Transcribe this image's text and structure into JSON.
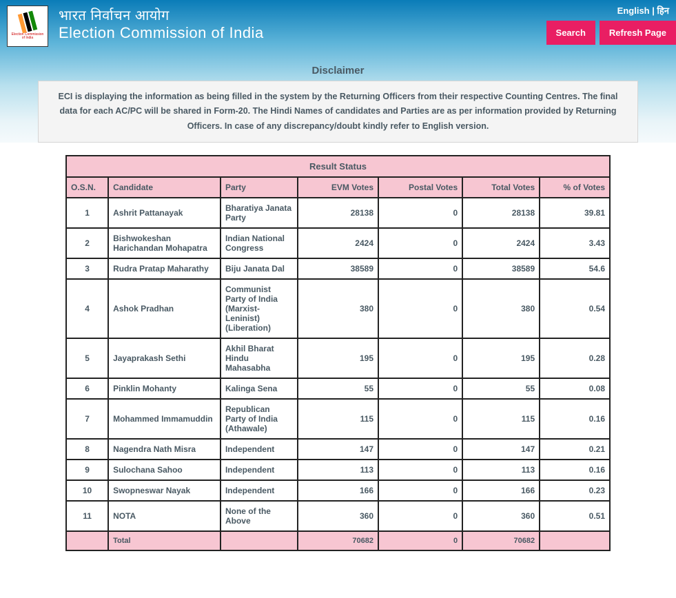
{
  "header": {
    "title_hindi": "भारत निर्वाचन आयोग",
    "title_english": "Election Commission of India",
    "lang_english": "English",
    "lang_separator": " | ",
    "lang_hindi": "हिन",
    "search_label": "Search",
    "refresh_label": "Refresh Page",
    "logo_caption": "Election Commission of India"
  },
  "disclaimer": {
    "heading": "Disclaimer",
    "body": "ECI is displaying the information as being filled in the system by the Returning Officers from their respective Counting Centres. The final data for each AC/PC will be shared in Form-20. The Hindi Names of candidates and Parties are as per information provided by Returning Officers. In case of any discrepancy/doubt kindly refer to English version."
  },
  "table": {
    "caption": "Result Status",
    "columns": {
      "osn": "O.S.N.",
      "candidate": "Candidate",
      "party": "Party",
      "evm": "EVM Votes",
      "postal": "Postal Votes",
      "total": "Total Votes",
      "pct": "% of Votes"
    },
    "rows": [
      {
        "osn": "1",
        "candidate": "Ashrit Pattanayak",
        "party": "Bharatiya Janata Party",
        "evm": "28138",
        "postal": "0",
        "total": "28138",
        "pct": "39.81"
      },
      {
        "osn": "2",
        "candidate": "Bishwokeshan Harichandan Mohapatra",
        "party": "Indian National Congress",
        "evm": "2424",
        "postal": "0",
        "total": "2424",
        "pct": "3.43"
      },
      {
        "osn": "3",
        "candidate": "Rudra Pratap Maharathy",
        "party": "Biju Janata Dal",
        "evm": "38589",
        "postal": "0",
        "total": "38589",
        "pct": "54.6"
      },
      {
        "osn": "4",
        "candidate": "Ashok Pradhan",
        "party": "Communist Party of India (Marxist-Leninist) (Liberation)",
        "evm": "380",
        "postal": "0",
        "total": "380",
        "pct": "0.54"
      },
      {
        "osn": "5",
        "candidate": "Jayaprakash Sethi",
        "party": "Akhil Bharat Hindu Mahasabha",
        "evm": "195",
        "postal": "0",
        "total": "195",
        "pct": "0.28"
      },
      {
        "osn": "6",
        "candidate": "Pinklin Mohanty",
        "party": "Kalinga Sena",
        "evm": "55",
        "postal": "0",
        "total": "55",
        "pct": "0.08"
      },
      {
        "osn": "7",
        "candidate": "Mohammed Immamuddin",
        "party": "Republican Party of India (Athawale)",
        "evm": "115",
        "postal": "0",
        "total": "115",
        "pct": "0.16"
      },
      {
        "osn": "8",
        "candidate": "Nagendra Nath Misra",
        "party": "Independent",
        "evm": "147",
        "postal": "0",
        "total": "147",
        "pct": "0.21"
      },
      {
        "osn": "9",
        "candidate": "Sulochana Sahoo",
        "party": "Independent",
        "evm": "113",
        "postal": "0",
        "total": "113",
        "pct": "0.16"
      },
      {
        "osn": "10",
        "candidate": "Swopneswar Nayak",
        "party": "Independent",
        "evm": "166",
        "postal": "0",
        "total": "166",
        "pct": "0.23"
      },
      {
        "osn": "11",
        "candidate": "NOTA",
        "party": "None of the Above",
        "evm": "360",
        "postal": "0",
        "total": "360",
        "pct": "0.51"
      }
    ],
    "total_row": {
      "label": "Total",
      "evm": "70682",
      "postal": "0",
      "total": "70682"
    }
  },
  "colors": {
    "pink": "#f7c6d2",
    "button": "#e91e63",
    "text": "#495963"
  }
}
